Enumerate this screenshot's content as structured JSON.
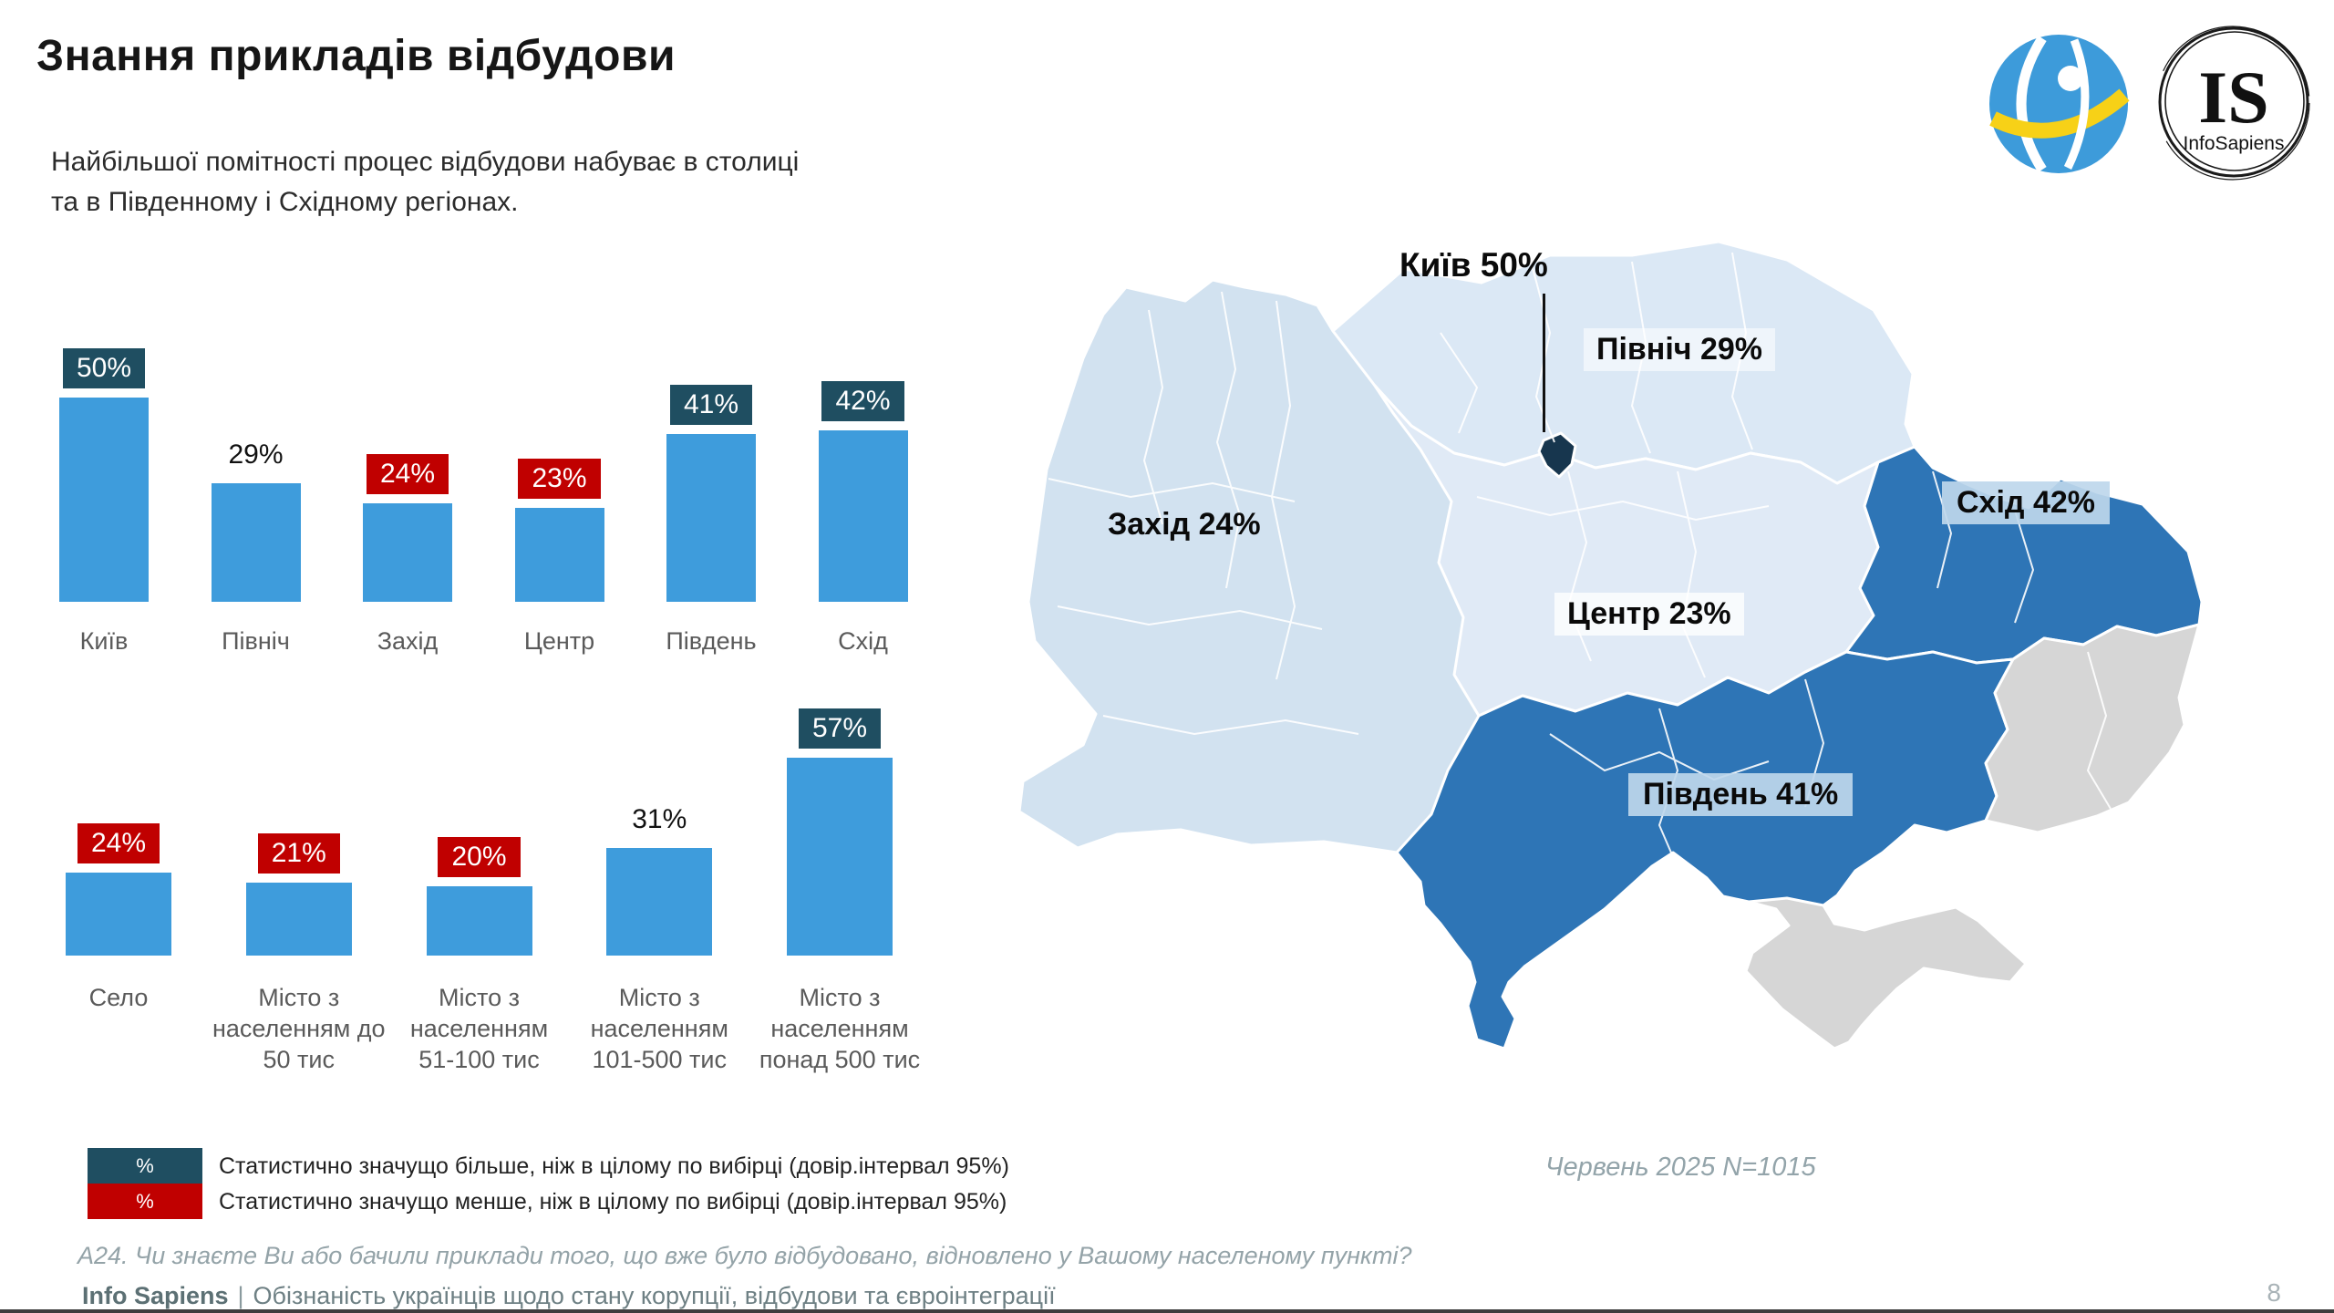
{
  "page": {
    "title": "Знання прикладів відбудови",
    "subtitle": "Найбільшої помітності процес відбудови набуває в столиці та в Південному і Східному регіонах.",
    "sample_note": "Червень 2025 N=1015",
    "question": "A24. Чи знаєте Ви або бачили приклади того, що вже було відбудовано, відновлено у Вашому населеному пункті?",
    "footer": {
      "brand": "Info Sapiens",
      "divider": "|",
      "text": "Обізнаність українців щодо стану корупції, відбудови та євроінтеграції"
    },
    "page_number": "8"
  },
  "logos": {
    "is_abbr": "IS",
    "is_name": "InfoSapiens"
  },
  "legend": {
    "swatch_text": "%",
    "more": "Статистично значущо більше, ніж в цілому по вибірці (довір.інтервал 95%)",
    "less": "Статистично значущо менше, ніж в цілому по вибірці (довір.інтервал 95%)"
  },
  "colors": {
    "bar": "#3E9CDC",
    "sig_more": "#1F4E61",
    "sig_less": "#C00000",
    "map_dark": "#2E75B6",
    "map_pale_west": "#D2E2F0",
    "map_pale_north": "#DBE8F5",
    "map_pale_center": "#E0EAF6",
    "map_grey": "#D6D6D6",
    "kyiv_dark": "#17364E"
  },
  "chart_data": [
    {
      "type": "bar",
      "title": "Знання прикладів відбудови за регіонами",
      "categories": [
        "Київ",
        "Північ",
        "Захід",
        "Центр",
        "Південь",
        "Схід"
      ],
      "values": [
        50,
        29,
        24,
        23,
        41,
        42
      ],
      "significance": [
        "more",
        "none",
        "less",
        "less",
        "more",
        "more"
      ],
      "unit": "%",
      "ylim": [
        0,
        60
      ],
      "grid": false,
      "legend_position": "none"
    },
    {
      "type": "bar",
      "title": "Знання прикладів відбудови за типом населеного пункту",
      "categories": [
        "Село",
        "Місто з населенням до 50 тис",
        "Місто з населенням 51-100 тис",
        "Місто з населенням 101-500 тис",
        "Місто з населенням понад 500 тис"
      ],
      "values": [
        24,
        21,
        20,
        31,
        57
      ],
      "significance": [
        "less",
        "less",
        "less",
        "none",
        "more"
      ],
      "unit": "%",
      "ylim": [
        0,
        60
      ],
      "grid": false,
      "legend_position": "none"
    }
  ],
  "map": {
    "title": "Карта України за регіонами",
    "labels": [
      {
        "id": "kyiv",
        "text": "Київ 50%",
        "style": "plain-big-callout"
      },
      {
        "id": "pivnich",
        "text": "Північ 29%",
        "style": "box-light"
      },
      {
        "id": "zakhid",
        "text": "Захід 24%",
        "style": "plain"
      },
      {
        "id": "tsentr",
        "text": "Центр 23%",
        "style": "box-white"
      },
      {
        "id": "skhid",
        "text": "Схід 42%",
        "style": "box-blue"
      },
      {
        "id": "pivden",
        "text": "Південь 41%",
        "style": "box-blue"
      }
    ]
  }
}
